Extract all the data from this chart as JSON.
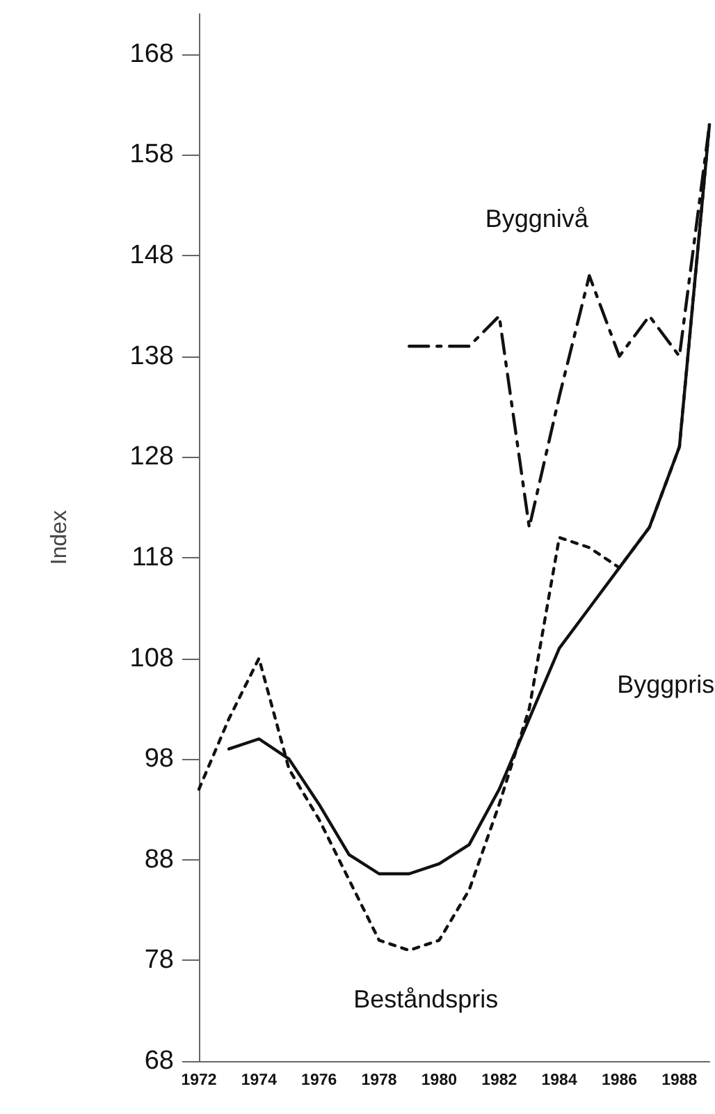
{
  "chart_data": {
    "type": "line",
    "ylabel": "Index",
    "xlim": [
      1972,
      1989
    ],
    "xticks": [
      1972,
      1974,
      1976,
      1978,
      1980,
      1982,
      1984,
      1986,
      1988
    ],
    "ylim": [
      68,
      172
    ],
    "yticks": [
      68,
      78,
      88,
      98,
      108,
      118,
      128,
      138,
      148,
      158,
      168
    ],
    "grid": false,
    "legend": false,
    "marker": "none",
    "series": [
      {
        "name": "Byggnivå",
        "color": "#111111",
        "line_style": "dashed",
        "x": [
          1979,
          1980,
          1981,
          1982,
          1983,
          1984,
          1985,
          1986,
          1987,
          1988,
          1989
        ],
        "values": [
          139,
          139,
          139,
          142,
          121,
          134,
          146,
          138,
          142,
          138,
          161
        ]
      },
      {
        "name": "Byggpris",
        "color": "#111111",
        "line_style": "solid",
        "x": [
          1973,
          1974,
          1975,
          1976,
          1977,
          1978,
          1979,
          1980,
          1981,
          1982,
          1983,
          1984,
          1985,
          1986,
          1987,
          1988,
          1989
        ],
        "values": [
          99,
          100,
          98,
          93.5,
          88.5,
          86.6,
          86.6,
          87.6,
          89.5,
          95,
          102,
          109,
          113,
          117,
          121,
          129,
          161
        ]
      },
      {
        "name": "Beståndspris",
        "color": "#111111",
        "line_style": "dotted",
        "x": [
          1972,
          1973,
          1974,
          1975,
          1976,
          1977,
          1978,
          1979,
          1980,
          1981,
          1982,
          1983,
          1984,
          1985,
          1986,
          1987,
          1988,
          1989
        ],
        "values": [
          95,
          102,
          108,
          97,
          92,
          86,
          80,
          79,
          80,
          85,
          93.5,
          103,
          120,
          119,
          117,
          121,
          129,
          161
        ]
      }
    ]
  }
}
